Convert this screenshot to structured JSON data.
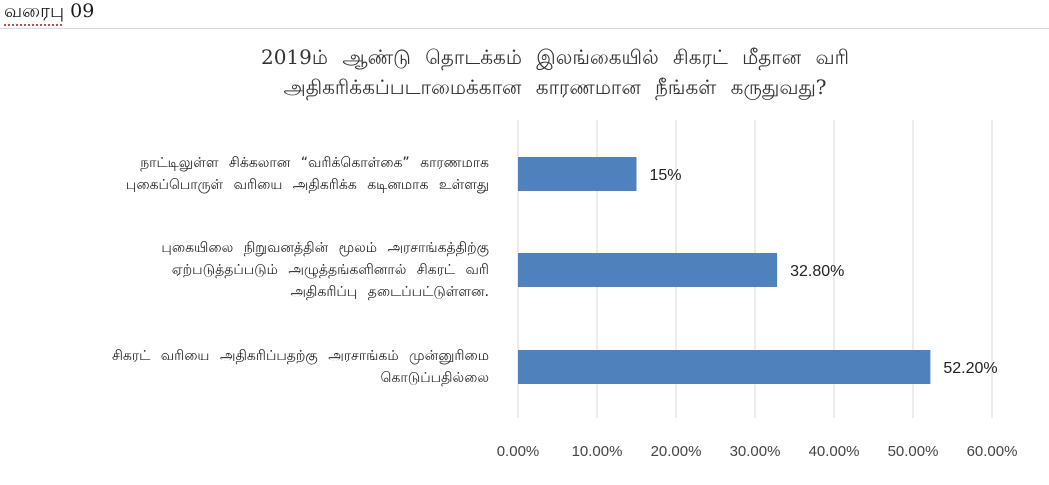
{
  "figure_label": "வரைபு 09",
  "colors": {
    "bar": "#4f81bd",
    "grid": "#d9d9d9"
  },
  "chart_data": {
    "type": "bar",
    "orientation": "horizontal",
    "title_lines": [
      "2019ம் ஆண்டு தொடக்கம் இலங்கையில் சிகரட் மீதான வரி",
      "அதிகரிக்கப்படாமைக்கான காரணமான நீங்கள் கருதுவது?"
    ],
    "categories": [
      {
        "lines": [
          "நாட்டிலுள்ள சிக்கலான “வரிக்கொள்கை” காரணமாக",
          "புகைப்பொருள் வரியை அதிகரிக்க கடினமாக உள்ளது"
        ],
        "value": 15,
        "label": "15%"
      },
      {
        "lines": [
          "புகையிலை நிறுவனத்தின் மூலம் அரசாங்கத்திற்கு",
          "ஏற்படுத்தப்படும் அழுத்தங்களினால் சிகரட் வரி",
          "அதிகரிப்பு தடைப்பட்டுள்ளன."
        ],
        "value": 32.8,
        "label": "32.80%"
      },
      {
        "lines": [
          "சிகரட் வரியை அதிகரிப்பதற்கு அரசாங்கம் முன்னுரிமை",
          "கொடுப்பதில்லை"
        ],
        "value": 52.2,
        "label": "52.20%"
      }
    ],
    "xlim": [
      0,
      60
    ],
    "x_ticks": [
      0,
      10,
      20,
      30,
      40,
      50,
      60
    ],
    "x_tick_labels": [
      "0.00%",
      "10.00%",
      "20.00%",
      "30.00%",
      "40.00%",
      "50.00%",
      "60.00%"
    ],
    "grid": true,
    "legend": "none"
  }
}
